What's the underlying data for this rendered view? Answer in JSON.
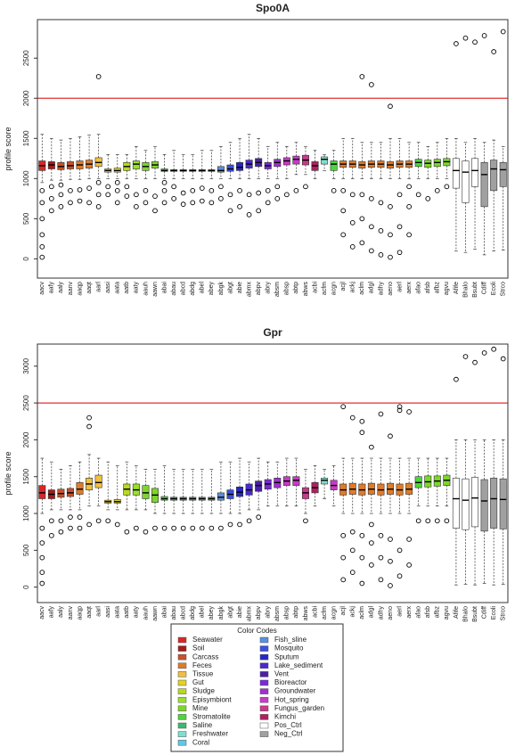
{
  "chart_data": [
    {
      "type": "boxplot",
      "title": "Spo0A",
      "y_label": "profile score",
      "categories": [
        "aacv",
        "aafy",
        "aaly",
        "aanv",
        "aaqp",
        "aaqt",
        "aarl",
        "aasi",
        "aata",
        "aatb",
        "aaty",
        "aauh",
        "aawn",
        "abai",
        "abau",
        "abcd",
        "abdg",
        "abel",
        "abey",
        "abgk",
        "abgt",
        "abie",
        "abmx",
        "abpv",
        "abry",
        "absm",
        "absp",
        "abtp",
        "abws",
        "acbi",
        "acfm",
        "acgn",
        "acjl",
        "ackj",
        "aclm",
        "adgl",
        "adhy",
        "aeno",
        "aerl",
        "aerx",
        "afao",
        "afsb",
        "afbz",
        "agvu",
        "Afife",
        "Bhalo",
        "Bsubt",
        "Cdiff",
        "Ecoli",
        "Strco"
      ],
      "colors": [
        "#d62728",
        "#a51c1c",
        "#c8522a",
        "#c8522a",
        "#e07b2a",
        "#e07b2a",
        "#f0c040",
        "#e6d21e",
        "#e6d21e",
        "#b8d91e",
        "#9be02a",
        "#7ed62b",
        "#7ed62b",
        "#4cd63a",
        "#3fb86e",
        "#3fb86e",
        "#3fb86e",
        "#3fb86e",
        "#3fb86e",
        "#5a8fe0",
        "#3a50e0",
        "#2626c8",
        "#4a2ad0",
        "#4b1fa8",
        "#7a2ad8",
        "#a030d0",
        "#c83ac8",
        "#c83ac8",
        "#c83a8a",
        "#b02060",
        "#7fdfcf",
        "#4cd63a",
        "#e07b2a",
        "#e07b2a",
        "#e07b2a",
        "#e07b2a",
        "#e07b2a",
        "#e07b2a",
        "#e07b2a",
        "#e07b2a",
        "#4cd63a",
        "#7ed62b",
        "#7ed62b",
        "#7ed62b",
        "#ffffff",
        "#ffffff",
        "#ffffff",
        "#a0a0a0",
        "#a0a0a0",
        "#a0a0a0"
      ],
      "q1": [
        1100,
        1120,
        1110,
        1120,
        1120,
        1130,
        1150,
        1080,
        1080,
        1100,
        1120,
        1100,
        1130,
        1090,
        1090,
        1090,
        1090,
        1090,
        1090,
        1080,
        1090,
        1100,
        1130,
        1150,
        1120,
        1150,
        1170,
        1180,
        1170,
        1100,
        1180,
        1100,
        1140,
        1140,
        1130,
        1140,
        1140,
        1130,
        1140,
        1140,
        1150,
        1140,
        1150,
        1160,
        880,
        700,
        900,
        650,
        850,
        900
      ],
      "median": [
        1160,
        1170,
        1150,
        1160,
        1170,
        1180,
        1200,
        1100,
        1100,
        1150,
        1180,
        1150,
        1170,
        1100,
        1100,
        1100,
        1100,
        1100,
        1100,
        1100,
        1120,
        1140,
        1180,
        1200,
        1160,
        1200,
        1220,
        1240,
        1230,
        1160,
        1240,
        1180,
        1180,
        1180,
        1170,
        1180,
        1180,
        1170,
        1180,
        1180,
        1200,
        1190,
        1200,
        1210,
        1100,
        1080,
        1100,
        1050,
        1120,
        1110
      ],
      "q3": [
        1220,
        1210,
        1200,
        1210,
        1220,
        1230,
        1260,
        1120,
        1130,
        1200,
        1220,
        1200,
        1210,
        1120,
        1110,
        1110,
        1110,
        1110,
        1110,
        1150,
        1170,
        1200,
        1230,
        1250,
        1200,
        1240,
        1260,
        1280,
        1290,
        1210,
        1270,
        1220,
        1220,
        1220,
        1210,
        1220,
        1220,
        1210,
        1220,
        1220,
        1240,
        1230,
        1240,
        1250,
        1250,
        1220,
        1250,
        1200,
        1230,
        1200
      ],
      "whisker_low": [
        950,
        980,
        980,
        990,
        990,
        1000,
        1000,
        1000,
        1000,
        1000,
        1000,
        1000,
        1000,
        1000,
        1000,
        1000,
        1000,
        1000,
        1000,
        1000,
        1000,
        1000,
        1000,
        1000,
        1000,
        1000,
        1000,
        1050,
        1050,
        1000,
        1100,
        1000,
        1000,
        1000,
        1000,
        1000,
        1000,
        1000,
        1000,
        1000,
        1000,
        1000,
        1000,
        1000,
        100,
        80,
        120,
        50,
        100,
        110
      ],
      "whisker_high": [
        1550,
        1500,
        1480,
        1500,
        1520,
        1540,
        1550,
        1300,
        1300,
        1300,
        1400,
        1350,
        1400,
        1300,
        1350,
        1300,
        1300,
        1350,
        1350,
        1400,
        1450,
        1500,
        1550,
        1500,
        1400,
        1450,
        1400,
        1450,
        1400,
        1350,
        1300,
        1350,
        1500,
        1500,
        1450,
        1450,
        1450,
        1500,
        1500,
        1450,
        1450,
        1400,
        1450,
        1500,
        1500,
        1450,
        1500,
        1450,
        1480,
        1400
      ],
      "outliers": [
        [
          20,
          150,
          300,
          500,
          700,
          850
        ],
        [
          600,
          750,
          900
        ],
        [
          650,
          800,
          920
        ],
        [
          700,
          850
        ],
        [
          720,
          860
        ],
        [
          700,
          880
        ],
        [
          2270,
          650,
          800,
          950
        ],
        [
          800,
          900
        ],
        [
          700,
          850,
          950
        ],
        [
          780,
          900
        ],
        [
          650,
          800
        ],
        [
          700,
          850
        ],
        [
          600,
          780
        ],
        [
          700,
          850,
          950
        ],
        [
          750,
          900
        ],
        [
          680,
          820
        ],
        [
          700,
          850
        ],
        [
          720,
          880
        ],
        [
          700,
          850
        ],
        [
          750,
          900
        ],
        [
          600,
          800
        ],
        [
          650,
          850
        ],
        [
          550,
          800
        ],
        [
          600,
          820
        ],
        [
          700,
          850
        ],
        [
          750,
          900
        ],
        [
          800
        ],
        [
          850
        ],
        [
          900
        ],
        [],
        [],
        [
          850
        ],
        [
          300,
          600,
          850
        ],
        [
          150,
          450,
          800
        ],
        [
          2270,
          200,
          500,
          800
        ],
        [
          2170,
          100,
          400,
          750
        ],
        [
          50,
          350,
          700
        ],
        [
          1900,
          20,
          300,
          650
        ],
        [
          80,
          400,
          800
        ],
        [
          300,
          650,
          900
        ],
        [
          800
        ],
        [
          750
        ],
        [
          850
        ],
        [
          900
        ],
        [
          2680
        ],
        [
          2750
        ],
        [
          2700
        ],
        [
          2780
        ],
        [
          2580
        ],
        [
          2830
        ]
      ],
      "reference_line": 2000,
      "reference_color": "#e03030",
      "ylim": [
        -240,
        2980
      ],
      "yticks": [
        0,
        500,
        1000,
        1500,
        2000,
        2500
      ]
    },
    {
      "type": "boxplot",
      "title": "Gpr",
      "y_label": "profile score",
      "categories": [
        "aacv",
        "aafy",
        "aaly",
        "aanv",
        "aaqp",
        "aaqt",
        "aarl",
        "aasi",
        "aata",
        "aatb",
        "aaty",
        "aauh",
        "aawn",
        "abai",
        "abau",
        "abcd",
        "abdg",
        "abel",
        "abey",
        "abgk",
        "abgt",
        "abie",
        "abmx",
        "abpv",
        "abry",
        "absm",
        "absp",
        "abtp",
        "abws",
        "acbi",
        "acfm",
        "acgn",
        "acjl",
        "ackj",
        "aclm",
        "adgl",
        "adhy",
        "aeno",
        "aerl",
        "aerx",
        "afao",
        "afsb",
        "afbz",
        "agvu",
        "Afife",
        "Bhalo",
        "Bsubt",
        "Cdiff",
        "Ecoli",
        "Strco"
      ],
      "colors": [
        "#d62728",
        "#a51c1c",
        "#c8522a",
        "#c8522a",
        "#e07b2a",
        "#f0c040",
        "#f0c040",
        "#e6d21e",
        "#e6d21e",
        "#b8d91e",
        "#9be02a",
        "#7ed62b",
        "#7ed62b",
        "#4cd63a",
        "#3fb86e",
        "#3fb86e",
        "#3fb86e",
        "#3fb86e",
        "#3fb86e",
        "#5a8fe0",
        "#3a50e0",
        "#2626c8",
        "#4a2ad0",
        "#4b1fa8",
        "#7a2ad8",
        "#a030d0",
        "#c83ac8",
        "#c83ac8",
        "#c83a8a",
        "#b02060",
        "#7fdfcf",
        "#c83ac8",
        "#e07b2a",
        "#e07b2a",
        "#e07b2a",
        "#e07b2a",
        "#e07b2a",
        "#e07b2a",
        "#e07b2a",
        "#e07b2a",
        "#4cd63a",
        "#7ed62b",
        "#7ed62b",
        "#7ed62b",
        "#ffffff",
        "#ffffff",
        "#ffffff",
        "#a0a0a0",
        "#a0a0a0",
        "#a0a0a0"
      ],
      "q1": [
        1200,
        1200,
        1220,
        1230,
        1260,
        1320,
        1350,
        1140,
        1140,
        1250,
        1250,
        1200,
        1150,
        1180,
        1180,
        1180,
        1180,
        1180,
        1180,
        1180,
        1200,
        1230,
        1250,
        1300,
        1330,
        1350,
        1380,
        1380,
        1200,
        1280,
        1400,
        1320,
        1250,
        1260,
        1250,
        1260,
        1250,
        1260,
        1250,
        1260,
        1350,
        1360,
        1370,
        1380,
        800,
        780,
        820,
        760,
        800,
        790
      ],
      "median": [
        1280,
        1260,
        1270,
        1280,
        1330,
        1400,
        1420,
        1160,
        1160,
        1330,
        1320,
        1280,
        1250,
        1200,
        1200,
        1200,
        1200,
        1200,
        1200,
        1220,
        1260,
        1290,
        1320,
        1380,
        1400,
        1420,
        1440,
        1450,
        1280,
        1350,
        1450,
        1380,
        1320,
        1330,
        1320,
        1330,
        1320,
        1330,
        1320,
        1330,
        1420,
        1430,
        1440,
        1450,
        1200,
        1180,
        1210,
        1170,
        1200,
        1190
      ],
      "q3": [
        1380,
        1320,
        1330,
        1340,
        1420,
        1480,
        1520,
        1180,
        1190,
        1400,
        1400,
        1380,
        1340,
        1230,
        1220,
        1220,
        1220,
        1220,
        1220,
        1280,
        1320,
        1360,
        1400,
        1440,
        1460,
        1480,
        1500,
        1500,
        1350,
        1420,
        1480,
        1450,
        1400,
        1410,
        1400,
        1410,
        1400,
        1410,
        1400,
        1410,
        1500,
        1510,
        1510,
        1520,
        1480,
        1470,
        1490,
        1460,
        1480,
        1470
      ],
      "whisker_low": [
        1000,
        1050,
        1050,
        1050,
        1050,
        1100,
        1100,
        1050,
        1050,
        1050,
        1050,
        1050,
        1000,
        1000,
        1000,
        1000,
        1000,
        1000,
        1000,
        1000,
        1000,
        1000,
        1050,
        1050,
        1100,
        1100,
        1100,
        1100,
        1000,
        1100,
        1200,
        1100,
        1000,
        1000,
        1000,
        1000,
        1000,
        1000,
        1000,
        1000,
        1100,
        1100,
        1100,
        1100,
        30,
        40,
        30,
        50,
        30,
        40
      ],
      "whisker_high": [
        1750,
        1700,
        1600,
        1650,
        1700,
        1800,
        1750,
        1700,
        1650,
        1700,
        1650,
        1600,
        1600,
        1650,
        1600,
        1600,
        1600,
        1600,
        1600,
        1700,
        1700,
        1750,
        1700,
        1750,
        1700,
        1700,
        1750,
        1750,
        1600,
        1650,
        1600,
        1650,
        1750,
        1750,
        1750,
        1750,
        1750,
        1750,
        1750,
        1750,
        1750,
        1750,
        1750,
        1750,
        2000,
        2000,
        2000,
        2000,
        2000,
        2000
      ],
      "outliers": [
        [
          50,
          200,
          400,
          600,
          800
        ],
        [
          700,
          900
        ],
        [
          750,
          900
        ],
        [
          800,
          950
        ],
        [
          800,
          950
        ],
        [
          2300,
          2180,
          850
        ],
        [
          900
        ],
        [
          900
        ],
        [
          850
        ],
        [
          750
        ],
        [
          800
        ],
        [
          750
        ],
        [
          800
        ],
        [
          800
        ],
        [
          800
        ],
        [
          800
        ],
        [
          800
        ],
        [
          800
        ],
        [
          800
        ],
        [
          800
        ],
        [
          850
        ],
        [
          850
        ],
        [
          900
        ],
        [
          950
        ],
        [],
        [],
        [],
        [],
        [
          900
        ],
        [],
        [],
        [],
        [
          2450,
          100,
          400,
          700
        ],
        [
          2300,
          200,
          500,
          750
        ],
        [
          2250,
          2100,
          50,
          400,
          700
        ],
        [
          1900,
          300,
          600,
          850
        ],
        [
          2350,
          100,
          400,
          700
        ],
        [
          2050,
          20,
          350,
          650
        ],
        [
          2450,
          2400,
          150,
          500
        ],
        [
          2380,
          300,
          650
        ],
        [
          900
        ],
        [
          900
        ],
        [
          900
        ],
        [
          900
        ],
        [
          2820
        ],
        [
          3130
        ],
        [
          3050
        ],
        [
          3180
        ],
        [
          3230
        ],
        [
          3100
        ]
      ],
      "reference_line": 2500,
      "reference_color": "#e03030",
      "ylim": [
        -210,
        3300
      ],
      "yticks": [
        0,
        500,
        1000,
        1500,
        2000,
        2500,
        3000
      ]
    }
  ],
  "legend": {
    "title": "Color Codes",
    "items": [
      {
        "name": "Seawater",
        "color": "#d62728"
      },
      {
        "name": "Soil",
        "color": "#a51c1c"
      },
      {
        "name": "Carcass",
        "color": "#c8522a"
      },
      {
        "name": "Feces",
        "color": "#e07b2a"
      },
      {
        "name": "Tissue",
        "color": "#f0c040"
      },
      {
        "name": "Gut",
        "color": "#e6d21e"
      },
      {
        "name": "Sludge",
        "color": "#b8d91e"
      },
      {
        "name": "Episymbiont",
        "color": "#9be02a"
      },
      {
        "name": "Mine",
        "color": "#7ed62b"
      },
      {
        "name": "Stromatolite",
        "color": "#4cd63a"
      },
      {
        "name": "Saline",
        "color": "#3fb86e"
      },
      {
        "name": "Freshwater",
        "color": "#7fdfcf"
      },
      {
        "name": "Coral",
        "color": "#5fc8e8"
      },
      {
        "name": "Fish_sline",
        "color": "#5a8fe0"
      },
      {
        "name": "Mosquito",
        "color": "#3a50e0"
      },
      {
        "name": "Sputum",
        "color": "#2626c8"
      },
      {
        "name": "Lake_sediment",
        "color": "#4a2ad0"
      },
      {
        "name": "Vent",
        "color": "#4b1fa8"
      },
      {
        "name": "Bioreactor",
        "color": "#7a2ad8"
      },
      {
        "name": "Groundwater",
        "color": "#a030d0"
      },
      {
        "name": "Hot_spring",
        "color": "#c83ac8"
      },
      {
        "name": "Fungus_garden",
        "color": "#c83a8a"
      },
      {
        "name": "Kimchi",
        "color": "#b02060"
      },
      {
        "name": "Pos_Ctrl",
        "color": "#ffffff"
      },
      {
        "name": "Neg_Ctrl",
        "color": "#a0a0a0"
      }
    ]
  }
}
